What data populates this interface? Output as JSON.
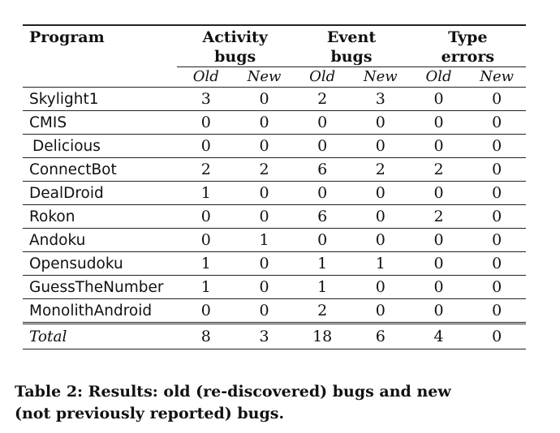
{
  "table": {
    "headers": {
      "program": "Program",
      "groups": [
        {
          "line1": "Activity",
          "line2": "bugs"
        },
        {
          "line1": "Event",
          "line2": "bugs"
        },
        {
          "line1": "Type",
          "line2": "errors"
        }
      ],
      "subheaders": [
        "Old",
        "New",
        "Old",
        "New",
        "Old",
        "New"
      ]
    },
    "rows": [
      {
        "program": "Skylight1",
        "values": [
          "3",
          "0",
          "2",
          "3",
          "0",
          "0"
        ]
      },
      {
        "program": "CMIS",
        "values": [
          "0",
          "0",
          "0",
          "0",
          "0",
          "0"
        ]
      },
      {
        "program": "Delicious",
        "values": [
          "0",
          "0",
          "0",
          "0",
          "0",
          "0"
        ]
      },
      {
        "program": "ConnectBot",
        "values": [
          "2",
          "2",
          "6",
          "2",
          "2",
          "0"
        ]
      },
      {
        "program": "DealDroid",
        "values": [
          "1",
          "0",
          "0",
          "0",
          "0",
          "0"
        ]
      },
      {
        "program": "Rokon",
        "values": [
          "0",
          "0",
          "6",
          "0",
          "2",
          "0"
        ]
      },
      {
        "program": "Andoku",
        "values": [
          "0",
          "1",
          "0",
          "0",
          "0",
          "0"
        ]
      },
      {
        "program": "Opensudoku",
        "values": [
          "1",
          "0",
          "1",
          "1",
          "0",
          "0"
        ]
      },
      {
        "program": "GuessTheNumber",
        "values": [
          "1",
          "0",
          "1",
          "0",
          "0",
          "0"
        ]
      },
      {
        "program": "MonolithAndroid",
        "values": [
          "0",
          "0",
          "2",
          "0",
          "0",
          "0"
        ]
      }
    ],
    "total": {
      "label": "Total",
      "values": [
        "8",
        "3",
        "18",
        "6",
        "4",
        "0"
      ]
    }
  },
  "caption": {
    "line1": "Table 2: Results: old (re-discovered) bugs and new",
    "line2": "(not previously reported) bugs."
  }
}
